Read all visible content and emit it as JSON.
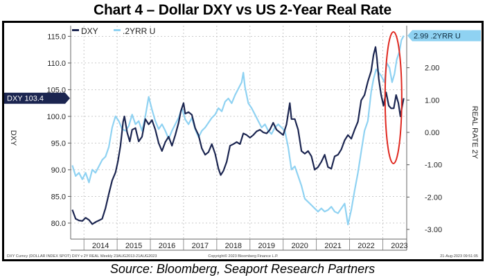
{
  "title": "Chart 4 – Dollar DXY vs US 2-Year Real Rate",
  "source": "Source: Bloomberg, Seaport Research Partners",
  "footer": {
    "left": "DXY Curncy (DOLLAR INDEX SPOT) DXY v 2Y REAL  Weekly 23AUG2013-21AUG2023",
    "center": "Copyright© 2023 Bloomberg Finance L.P.",
    "right": "21-Aug-2023 09:51:05"
  },
  "colors": {
    "dxy": "#1b2550",
    "rr": "#8fd2f2",
    "grid": "#b9b9b9",
    "highlight_circle": "#e0281f",
    "tag_text": "#ffffff"
  },
  "chart_data": {
    "type": "line",
    "legend": [
      "DXY",
      ".2YRR U"
    ],
    "legend_position": "top-left",
    "x_tick_labels": [
      "2014",
      "2015",
      "2016",
      "2017",
      "2018",
      "2019",
      "2020",
      "2021",
      "2022",
      "2023"
    ],
    "left_axis": {
      "label": "DXY",
      "ticks": [
        "115.0",
        "110.0",
        "105.0",
        "100.0",
        "95.0",
        "90.0",
        "85.0",
        "80.0"
      ],
      "range": [
        77,
        117
      ]
    },
    "right_axis": {
      "label": "REAL RATE 2Y",
      "ticks": [
        "2.00",
        "1.00",
        "0.00",
        "-1.00",
        "-2.00",
        "-3.00"
      ],
      "range": [
        -3.3,
        3.3
      ]
    },
    "last_value_tags": {
      "dxy": "DXY 103.4",
      "rr": "2.99 .2YRR U"
    },
    "grid": true,
    "annotation": "red ellipse highlighting recent period (2023)",
    "series": [
      {
        "name": "DXY",
        "axis": "left",
        "points": [
          [
            2013.65,
            82.5
          ],
          [
            2013.75,
            80.8
          ],
          [
            2013.85,
            80.5
          ],
          [
            2013.95,
            80.4
          ],
          [
            2014.05,
            81.0
          ],
          [
            2014.15,
            80.6
          ],
          [
            2014.25,
            79.8
          ],
          [
            2014.35,
            80.2
          ],
          [
            2014.45,
            80.5
          ],
          [
            2014.55,
            80.8
          ],
          [
            2014.65,
            82.8
          ],
          [
            2014.75,
            85.5
          ],
          [
            2014.85,
            88.0
          ],
          [
            2014.95,
            89.5
          ],
          [
            2015.02,
            91.5
          ],
          [
            2015.1,
            94.5
          ],
          [
            2015.18,
            99.0
          ],
          [
            2015.22,
            100.0
          ],
          [
            2015.3,
            97.0
          ],
          [
            2015.38,
            95.3
          ],
          [
            2015.45,
            97.5
          ],
          [
            2015.55,
            97.8
          ],
          [
            2015.65,
            95.3
          ],
          [
            2015.75,
            96.2
          ],
          [
            2015.85,
            99.5
          ],
          [
            2015.95,
            98.5
          ],
          [
            2016.05,
            99.3
          ],
          [
            2016.15,
            97.5
          ],
          [
            2016.25,
            95.0
          ],
          [
            2016.35,
            93.5
          ],
          [
            2016.45,
            95.2
          ],
          [
            2016.55,
            96.2
          ],
          [
            2016.65,
            94.5
          ],
          [
            2016.75,
            96.5
          ],
          [
            2016.85,
            98.8
          ],
          [
            2016.92,
            101.0
          ],
          [
            2017.0,
            102.5
          ],
          [
            2017.05,
            100.5
          ],
          [
            2017.15,
            100.8
          ],
          [
            2017.25,
            100.3
          ],
          [
            2017.35,
            97.8
          ],
          [
            2017.45,
            96.5
          ],
          [
            2017.55,
            94.0
          ],
          [
            2017.65,
            92.8
          ],
          [
            2017.75,
            93.3
          ],
          [
            2017.85,
            94.8
          ],
          [
            2017.95,
            93.0
          ],
          [
            2018.05,
            90.2
          ],
          [
            2018.12,
            89.0
          ],
          [
            2018.2,
            89.8
          ],
          [
            2018.3,
            91.5
          ],
          [
            2018.4,
            94.5
          ],
          [
            2018.5,
            94.8
          ],
          [
            2018.6,
            95.2
          ],
          [
            2018.7,
            94.8
          ],
          [
            2018.8,
            96.8
          ],
          [
            2018.9,
            96.5
          ],
          [
            2019.0,
            96.0
          ],
          [
            2019.1,
            96.5
          ],
          [
            2019.2,
            97.2
          ],
          [
            2019.3,
            97.5
          ],
          [
            2019.4,
            97.0
          ],
          [
            2019.5,
            96.8
          ],
          [
            2019.6,
            97.5
          ],
          [
            2019.7,
            98.8
          ],
          [
            2019.8,
            97.5
          ],
          [
            2019.9,
            97.0
          ],
          [
            2020.0,
            96.5
          ],
          [
            2020.1,
            98.5
          ],
          [
            2020.2,
            102.5
          ],
          [
            2020.25,
            99.5
          ],
          [
            2020.35,
            99.5
          ],
          [
            2020.45,
            97.5
          ],
          [
            2020.55,
            93.5
          ],
          [
            2020.65,
            93.0
          ],
          [
            2020.75,
            93.5
          ],
          [
            2020.85,
            92.5
          ],
          [
            2020.95,
            90.0
          ],
          [
            2021.05,
            90.5
          ],
          [
            2021.15,
            91.5
          ],
          [
            2021.25,
            92.8
          ],
          [
            2021.35,
            90.5
          ],
          [
            2021.45,
            90.2
          ],
          [
            2021.55,
            92.5
          ],
          [
            2021.65,
            92.8
          ],
          [
            2021.75,
            93.8
          ],
          [
            2021.85,
            95.5
          ],
          [
            2021.95,
            96.5
          ],
          [
            2022.05,
            95.8
          ],
          [
            2022.15,
            97.5
          ],
          [
            2022.25,
            99.0
          ],
          [
            2022.35,
            103.0
          ],
          [
            2022.45,
            104.0
          ],
          [
            2022.55,
            106.5
          ],
          [
            2022.65,
            108.5
          ],
          [
            2022.72,
            111.5
          ],
          [
            2022.78,
            113.0
          ],
          [
            2022.82,
            111.0
          ],
          [
            2022.88,
            107.0
          ],
          [
            2022.95,
            104.0
          ],
          [
            2023.02,
            102.0
          ],
          [
            2023.1,
            104.5
          ],
          [
            2023.18,
            102.0
          ],
          [
            2023.25,
            101.5
          ],
          [
            2023.33,
            101.5
          ],
          [
            2023.4,
            104.0
          ],
          [
            2023.47,
            102.5
          ],
          [
            2023.53,
            100.0
          ],
          [
            2023.58,
            101.8
          ],
          [
            2023.63,
            103.4
          ]
        ]
      },
      {
        "name": ".2YRR U",
        "axis": "right",
        "points": [
          [
            2013.65,
            -1.02
          ],
          [
            2013.75,
            -1.35
          ],
          [
            2013.85,
            -1.25
          ],
          [
            2013.95,
            -1.45
          ],
          [
            2014.05,
            -1.25
          ],
          [
            2014.15,
            -1.55
          ],
          [
            2014.25,
            -1.15
          ],
          [
            2014.35,
            -1.25
          ],
          [
            2014.45,
            -1.05
          ],
          [
            2014.55,
            -0.85
          ],
          [
            2014.65,
            -0.75
          ],
          [
            2014.75,
            -0.45
          ],
          [
            2014.85,
            0.15
          ],
          [
            2014.95,
            0.5
          ],
          [
            2015.05,
            0.35
          ],
          [
            2015.15,
            0.1
          ],
          [
            2015.25,
            0.05
          ],
          [
            2015.35,
            0.2
          ],
          [
            2015.45,
            0.55
          ],
          [
            2015.55,
            0.25
          ],
          [
            2015.65,
            0.35
          ],
          [
            2015.75,
            0.05
          ],
          [
            2015.85,
            0.5
          ],
          [
            2015.95,
            1.1
          ],
          [
            2016.05,
            0.7
          ],
          [
            2016.15,
            0.35
          ],
          [
            2016.25,
            0.1
          ],
          [
            2016.35,
            0.25
          ],
          [
            2016.45,
            0.05
          ],
          [
            2016.55,
            -0.2
          ],
          [
            2016.65,
            0.05
          ],
          [
            2016.75,
            0.25
          ],
          [
            2016.85,
            0.45
          ],
          [
            2016.95,
            0.75
          ],
          [
            2017.05,
            0.4
          ],
          [
            2017.15,
            0.25
          ],
          [
            2017.25,
            0.45
          ],
          [
            2017.35,
            0.1
          ],
          [
            2017.45,
            -0.15
          ],
          [
            2017.55,
            0.05
          ],
          [
            2017.65,
            0.15
          ],
          [
            2017.75,
            0.3
          ],
          [
            2017.85,
            0.45
          ],
          [
            2017.95,
            0.55
          ],
          [
            2018.05,
            0.75
          ],
          [
            2018.15,
            0.65
          ],
          [
            2018.25,
            0.95
          ],
          [
            2018.35,
            1.05
          ],
          [
            2018.45,
            0.9
          ],
          [
            2018.55,
            1.15
          ],
          [
            2018.65,
            1.35
          ],
          [
            2018.75,
            1.55
          ],
          [
            2018.8,
            1.85
          ],
          [
            2018.85,
            1.4
          ],
          [
            2018.95,
            0.9
          ],
          [
            2019.05,
            0.75
          ],
          [
            2019.15,
            0.55
          ],
          [
            2019.25,
            0.35
          ],
          [
            2019.35,
            0.15
          ],
          [
            2019.45,
            0.25
          ],
          [
            2019.55,
            0.05
          ],
          [
            2019.65,
            -0.05
          ],
          [
            2019.75,
            0.15
          ],
          [
            2019.85,
            0.25
          ],
          [
            2019.95,
            0.15
          ],
          [
            2020.05,
            0.05
          ],
          [
            2020.15,
            -0.45
          ],
          [
            2020.25,
            -1.15
          ],
          [
            2020.35,
            -1.05
          ],
          [
            2020.45,
            -1.35
          ],
          [
            2020.55,
            -1.65
          ],
          [
            2020.65,
            -2.05
          ],
          [
            2020.75,
            -2.15
          ],
          [
            2020.85,
            -2.25
          ],
          [
            2020.95,
            -2.35
          ],
          [
            2021.05,
            -2.45
          ],
          [
            2021.15,
            -2.35
          ],
          [
            2021.25,
            -2.45
          ],
          [
            2021.35,
            -2.4
          ],
          [
            2021.45,
            -2.3
          ],
          [
            2021.55,
            -2.45
          ],
          [
            2021.65,
            -2.5
          ],
          [
            2021.75,
            -2.35
          ],
          [
            2021.85,
            -2.2
          ],
          [
            2021.95,
            -2.85
          ],
          [
            2022.05,
            -2.4
          ],
          [
            2022.15,
            -1.8
          ],
          [
            2022.25,
            -1.25
          ],
          [
            2022.35,
            -0.6
          ],
          [
            2022.45,
            0.05
          ],
          [
            2022.55,
            0.35
          ],
          [
            2022.65,
            1.25
          ],
          [
            2022.72,
            1.65
          ],
          [
            2022.8,
            1.95
          ],
          [
            2022.88,
            1.85
          ],
          [
            2022.95,
            1.75
          ],
          [
            2023.05,
            1.55
          ],
          [
            2023.12,
            2.15
          ],
          [
            2023.2,
            2.0
          ],
          [
            2023.28,
            1.55
          ],
          [
            2023.35,
            1.8
          ],
          [
            2023.42,
            2.25
          ],
          [
            2023.5,
            2.5
          ],
          [
            2023.56,
            2.85
          ],
          [
            2023.63,
            2.99
          ]
        ]
      }
    ]
  }
}
